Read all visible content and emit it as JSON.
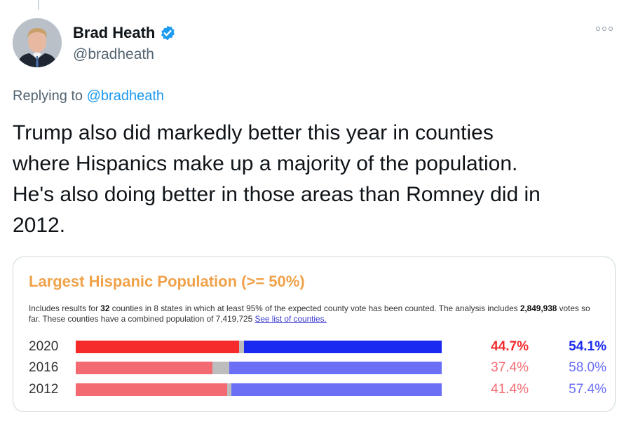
{
  "tweet": {
    "author_name": "Brad Heath",
    "handle": "@bradheath",
    "verified_icon": "verified-badge-icon",
    "more_icon": "more-options-icon",
    "replying_prefix": "Replying to",
    "replying_handle": "@bradheath",
    "text_lines": [
      "Trump also did markedly better this year in counties",
      "where Hispanics make up a majority of the population.",
      "He's also doing better in those areas than Romney did in",
      "2012."
    ]
  },
  "card": {
    "title": "Largest Hispanic Population (>= 50%)",
    "desc_1": "Includes results for ",
    "desc_counties": "32",
    "desc_2": " counties in 8 states in which at least 95% of the expected county vote has been counted. The analysis includes ",
    "desc_votes": "2,849,938",
    "desc_3": " votes so far. These counties have a combined population of 7,419,725 ",
    "desc_link": "See list of counties.",
    "colors": {
      "rep_current": "#f52a2a",
      "dem_current": "#1b2af0",
      "rep_past": "#f46a72",
      "dem_past": "#6a6ff5",
      "other": "#bdbdbd"
    }
  },
  "chart_data": {
    "type": "bar",
    "orientation": "horizontal-stacked",
    "categories": [
      "2020",
      "2016",
      "2012"
    ],
    "series": [
      {
        "values": [
          44.7,
          37.4,
          41.4
        ],
        "display": [
          "44.7%",
          "37.4%",
          "41.4%"
        ]
      },
      {
        "values": [
          54.1,
          58.0,
          57.4
        ],
        "display": [
          "54.1%",
          "58.0%",
          "57.4%"
        ]
      }
    ],
    "xlim": [
      0,
      100
    ]
  }
}
